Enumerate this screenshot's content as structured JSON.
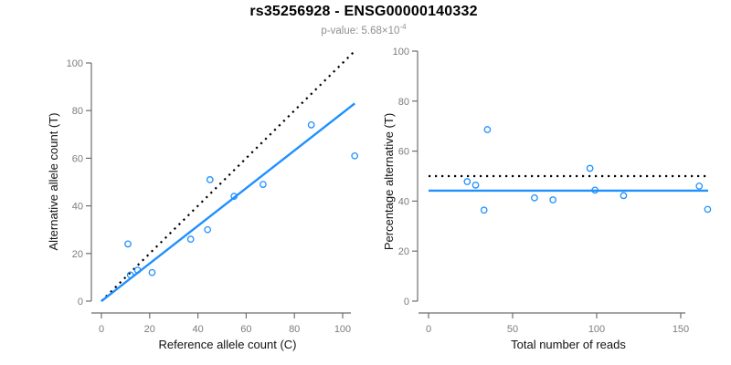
{
  "header": {
    "title": "rs35256928 - ENSG00000140332",
    "pvalue_prefix": "p-value: ",
    "pvalue_mantissa": "5.68",
    "pvalue_times": "×10",
    "pvalue_exponent": "-4"
  },
  "colors": {
    "accent_blue": "#1e90ff",
    "dashed_line": "#000000",
    "axis_line": "#6e6e6e",
    "tick_label": "#7c7c7c",
    "subtitle_gray": "#8f8f8f"
  },
  "chart_data": [
    {
      "type": "scatter",
      "xlabel": "Reference allele count (C)",
      "ylabel": "Alternative allele count (T)",
      "xlim": [
        0,
        105
      ],
      "ylim": [
        0,
        105
      ],
      "xticks": [
        0,
        20,
        40,
        60,
        80,
        100
      ],
      "yticks": [
        0,
        20,
        40,
        60,
        80,
        100
      ],
      "grid": false,
      "legend": null,
      "points": [
        [
          11,
          24
        ],
        [
          12,
          11
        ],
        [
          15,
          13
        ],
        [
          21,
          12
        ],
        [
          37,
          26
        ],
        [
          44,
          30
        ],
        [
          45,
          51
        ],
        [
          55,
          44
        ],
        [
          67,
          49
        ],
        [
          87,
          74
        ],
        [
          105,
          61
        ]
      ],
      "lines": [
        {
          "name": "identity-line",
          "style": "dotted",
          "color": "#000000",
          "x1": 0,
          "y1": 0,
          "x2": 105,
          "y2": 105
        },
        {
          "name": "regression-line",
          "style": "solid",
          "color": "#1e90ff",
          "x1": 0,
          "y1": 0,
          "x2": 105,
          "y2": 83
        }
      ]
    },
    {
      "type": "scatter",
      "xlabel": "Total number of reads",
      "ylabel": "Percentage alternative (T)",
      "xlim": [
        0,
        167
      ],
      "ylim": [
        0,
        100
      ],
      "xticks": [
        0,
        50,
        100,
        150
      ],
      "yticks": [
        0,
        20,
        40,
        60,
        80,
        100
      ],
      "grid": false,
      "legend": null,
      "points": [
        [
          35,
          68.6
        ],
        [
          23,
          47.8
        ],
        [
          28,
          46.4
        ],
        [
          33,
          36.4
        ],
        [
          63,
          41.3
        ],
        [
          74,
          40.5
        ],
        [
          96,
          53.1
        ],
        [
          99,
          44.4
        ],
        [
          116,
          42.2
        ],
        [
          161,
          46.0
        ],
        [
          166,
          36.7
        ]
      ],
      "lines": [
        {
          "name": "fifty-percent-line",
          "style": "dotted",
          "color": "#000000",
          "y": 50
        },
        {
          "name": "mean-percentage-line",
          "style": "solid",
          "color": "#1e90ff",
          "y": 44.2
        }
      ]
    }
  ]
}
